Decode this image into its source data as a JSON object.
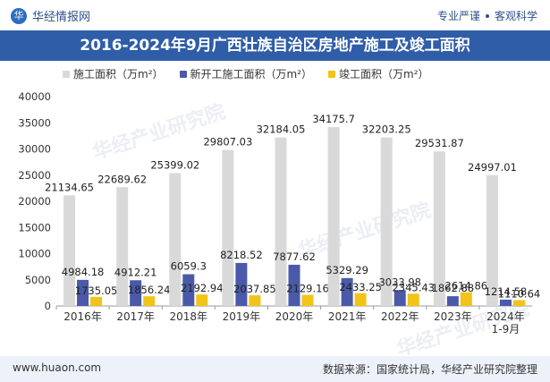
{
  "header": {
    "brand": "华经情报网",
    "slogan_left": "专业严谨",
    "slogan_right": "客观科学",
    "logo_glyph": "华"
  },
  "colors": {
    "title_bg": "#2f5da8",
    "series1": "#d9d9d9",
    "series2": "#4a5aa8",
    "series3": "#f2c318"
  },
  "watermark": "华经产业研究院",
  "footer": {
    "website": "www.huaon.com",
    "source": "数据来源：国家统计局，华经产业研究院整理"
  },
  "chart_data": {
    "type": "bar",
    "title": "2016-2024年9月广西壮族自治区房地产施工及竣工面积",
    "categories": [
      "2016年",
      "2017年",
      "2018年",
      "2019年",
      "2020年",
      "2021年",
      "2022年",
      "2023年",
      "2024年\n1-9月"
    ],
    "series": [
      {
        "name": "施工面积（万m²）",
        "values": [
          21134.65,
          22689.62,
          25399.02,
          29807.03,
          32184.05,
          34175.7,
          32203.25,
          29531.87,
          24997.01
        ],
        "labels": [
          "21134.65",
          "22689.62",
          "25399.02",
          "29807.03",
          "32184.05",
          "34175.7",
          "32203.25",
          "29531.87",
          "24997.01"
        ]
      },
      {
        "name": "新开工施工面积（万m²）",
        "values": [
          4984.18,
          4912.21,
          6059.3,
          8218.52,
          7877.62,
          5329.29,
          3033.98,
          1862.88,
          1214.58
        ],
        "labels": [
          "4984.18",
          "4912.21",
          "6059.3",
          "8218.52",
          "7877.62",
          "5329.29",
          "3033.98",
          "1862.88",
          "1214.58"
        ]
      },
      {
        "name": "竣工面积（万m²）",
        "values": [
          1735.05,
          1856.24,
          2192.94,
          2037.85,
          2129.16,
          2433.25,
          2345.43,
          2614.86,
          1110.64
        ],
        "labels": [
          "1735.05",
          "1856.24",
          "2192.94",
          "2037.85",
          "2129.16",
          "2433.25",
          "2345.43",
          "2614.86",
          "1110.64"
        ]
      }
    ],
    "ylim": [
      0,
      40000
    ],
    "yticks": [
      "0",
      "5000",
      "10000",
      "15000",
      "20000",
      "25000",
      "30000",
      "35000",
      "40000"
    ],
    "xlabel": "",
    "ylabel": "",
    "legend": "top-left",
    "grid": false
  }
}
